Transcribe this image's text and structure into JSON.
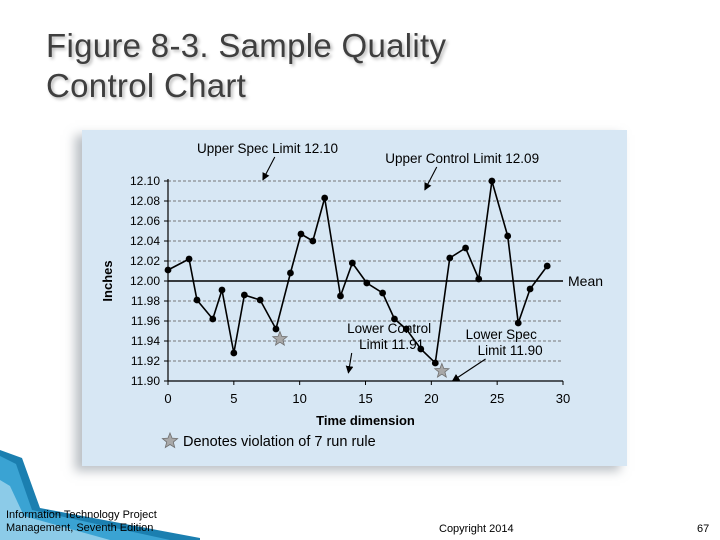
{
  "slide": {
    "title_line1": "Figure 8-3. Sample Quality",
    "title_line2": "Control Chart"
  },
  "footer": {
    "source_line1": "Information Technology Project",
    "source_line2": "Management, Seventh Edition",
    "copyright": "Copyright 2014",
    "page_number": "67"
  },
  "chart_data": {
    "type": "line",
    "xlabel": "Time dimension",
    "ylabel": "Inches",
    "xlim": [
      0,
      30
    ],
    "ylim": [
      11.9,
      12.1
    ],
    "x_ticks": [
      0,
      5,
      10,
      15,
      20,
      25,
      30
    ],
    "x_tick_labels": [
      "0",
      "5",
      "10",
      "15",
      "20",
      "25",
      "30"
    ],
    "y_ticks": [
      12.1,
      12.08,
      12.06,
      12.04,
      12.02,
      12.0,
      11.98,
      11.96,
      11.94,
      11.92,
      11.9
    ],
    "y_tick_labels": [
      "12.10",
      "12.08",
      "12.06",
      "12.04",
      "12.02",
      "12.00",
      "11.98",
      "11.96",
      "11.94",
      "11.92",
      "11.90"
    ],
    "grid": "horizontal-dashed",
    "series": [
      {
        "values": [
          {
            "x": 0,
            "y": 12.011
          },
          {
            "x": 1.6,
            "y": 12.022
          },
          {
            "x": 2.2,
            "y": 11.981
          },
          {
            "x": 3.4,
            "y": 11.962
          },
          {
            "x": 4.1,
            "y": 11.991
          },
          {
            "x": 5.0,
            "y": 11.928
          },
          {
            "x": 5.8,
            "y": 11.986
          },
          {
            "x": 7.0,
            "y": 11.981
          },
          {
            "x": 8.2,
            "y": 11.952
          },
          {
            "x": 9.3,
            "y": 12.008
          },
          {
            "x": 10.1,
            "y": 12.047
          },
          {
            "x": 11.0,
            "y": 12.04
          },
          {
            "x": 11.9,
            "y": 12.083
          },
          {
            "x": 13.1,
            "y": 11.985
          },
          {
            "x": 14.0,
            "y": 12.018
          },
          {
            "x": 15.1,
            "y": 11.998
          },
          {
            "x": 16.3,
            "y": 11.988
          },
          {
            "x": 17.2,
            "y": 11.962
          },
          {
            "x": 18.1,
            "y": 11.952
          },
          {
            "x": 19.2,
            "y": 11.932
          },
          {
            "x": 20.3,
            "y": 11.918
          },
          {
            "x": 21.4,
            "y": 12.023
          },
          {
            "x": 22.6,
            "y": 12.033
          },
          {
            "x": 23.6,
            "y": 12.002
          },
          {
            "x": 24.6,
            "y": 12.1
          },
          {
            "x": 25.8,
            "y": 12.045
          },
          {
            "x": 26.6,
            "y": 11.958
          },
          {
            "x": 27.5,
            "y": 11.992
          },
          {
            "x": 28.8,
            "y": 12.015
          }
        ]
      }
    ],
    "violation_markers": [
      {
        "x": 8.5,
        "y": 11.942
      },
      {
        "x": 20.8,
        "y": 11.91
      }
    ],
    "reference_lines": [
      {
        "y": 12.0,
        "label": "Mean"
      }
    ],
    "annotations": [
      {
        "label": "Upper Spec Limit 12.10",
        "lines": [
          "Upper Spec Limit 12.10"
        ],
        "text_at": [
          2.2,
          12.128
        ],
        "arrow_to": [
          7.2,
          12.101
        ]
      },
      {
        "label": "Upper Control Limit 12.09",
        "lines": [
          "Upper Control Limit 12.09"
        ],
        "text_at": [
          16.5,
          12.118
        ],
        "arrow_to": [
          19.5,
          12.091
        ]
      },
      {
        "label": "Lower Control Limit 11.91",
        "lines": [
          "Lower Control",
          "Limit 11.91"
        ],
        "text_at": [
          13.6,
          11.948
        ],
        "arrow_to": [
          13.7,
          11.908
        ]
      },
      {
        "label": "Lower Spec Limit 11.90",
        "lines": [
          "Lower Spec",
          "Limit 11.90"
        ],
        "text_at": [
          22.6,
          11.942
        ],
        "arrow_to": [
          21.6,
          11.9
        ]
      }
    ],
    "legend": {
      "text": "Denotes violation of 7 run rule",
      "symbol": "star",
      "placement": "bottom-left"
    },
    "colors": {
      "background": "#d7e7f4",
      "line": "#000000",
      "marker": "#000000",
      "star_fill": "#a8a8a8",
      "star_stroke": "#6e6e6e",
      "grid": "#777777"
    }
  }
}
